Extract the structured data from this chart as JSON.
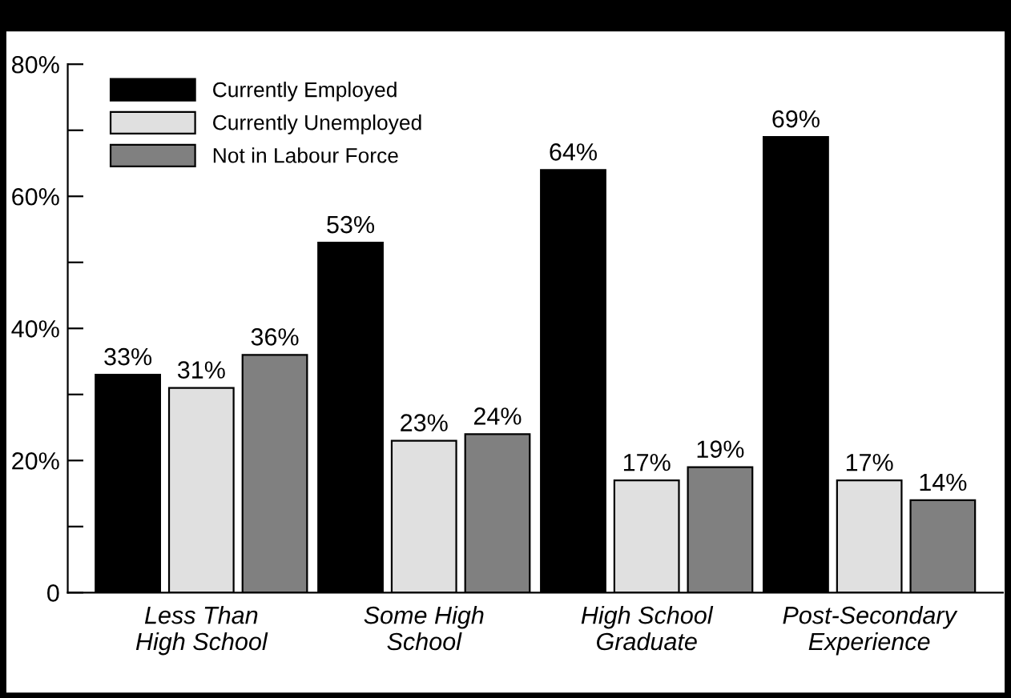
{
  "chart_data": {
    "type": "bar",
    "categories": [
      "Less Than\nHigh School",
      "Some High\nSchool",
      "High School\nGraduate",
      "Post-Secondary\nExperience"
    ],
    "series": [
      {
        "name": "Currently Employed",
        "color": "#000000",
        "values": [
          33,
          53,
          64,
          69
        ]
      },
      {
        "name": "Currently Unemployed",
        "color": "#e0e0e0",
        "values": [
          31,
          23,
          17,
          17
        ]
      },
      {
        "name": "Not in Labour Force",
        "color": "#808080",
        "values": [
          36,
          24,
          19,
          14
        ]
      }
    ],
    "ylim": [
      0,
      80
    ],
    "yticks": [
      {
        "value": 0,
        "label": "0"
      },
      {
        "value": 10,
        "label": null
      },
      {
        "value": 20,
        "label": "20%"
      },
      {
        "value": 30,
        "label": null
      },
      {
        "value": 40,
        "label": "40%"
      },
      {
        "value": 50,
        "label": null
      },
      {
        "value": 60,
        "label": "60%"
      },
      {
        "value": 70,
        "label": null
      },
      {
        "value": 80,
        "label": "80%"
      }
    ],
    "value_labels": [
      [
        "33%",
        "53%",
        "64%",
        "69%"
      ],
      [
        "31%",
        "23%",
        "17%",
        "17%"
      ],
      [
        "36%",
        "24%",
        "19%",
        "14%"
      ]
    ],
    "legend": "top left",
    "grid": false
  }
}
